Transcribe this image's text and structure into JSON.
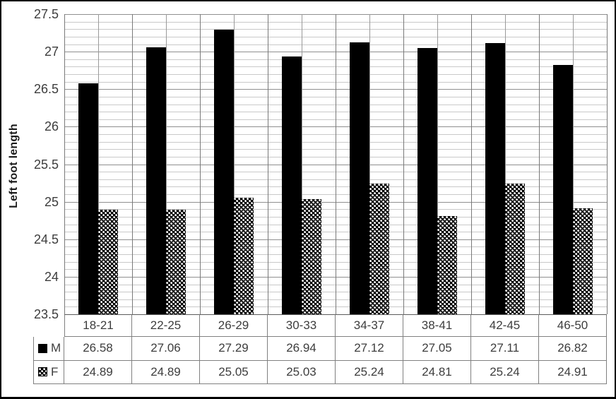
{
  "figure": {
    "background": "#ffffff",
    "border_color": "#000000"
  },
  "chart_data": {
    "type": "bar",
    "title": "",
    "xlabel": "",
    "ylabel": "Left foot length",
    "categories": [
      "18-21",
      "22-25",
      "26-29",
      "30-33",
      "34-37",
      "38-41",
      "42-45",
      "46-50"
    ],
    "series": [
      {
        "name": "M",
        "fill": "solid",
        "color": "#000000",
        "values": [
          26.58,
          27.06,
          27.29,
          26.94,
          27.12,
          27.05,
          27.11,
          26.82
        ]
      },
      {
        "name": "F",
        "fill": "checker",
        "color": "#000000",
        "pattern_dot_color": "#ffffff",
        "values": [
          24.89,
          24.89,
          25.05,
          25.03,
          25.24,
          24.81,
          25.24,
          24.91
        ]
      }
    ],
    "ylim": [
      23.5,
      27.5
    ],
    "y_tick_values": [
      27.5,
      27,
      26.5,
      26,
      25.5,
      25,
      24.5,
      24,
      23.5
    ],
    "y_major_step": 0.5,
    "y_minor_step": 0.1,
    "grid": {
      "horizontal_major": true,
      "horizontal_minor": true,
      "vertical_category": true,
      "vertical_half_category": true
    },
    "legend_position": "table-left-column",
    "data_table_shown": true,
    "colors": {
      "grid_major": "#8f8f8f",
      "grid_minor": "#c9c9c9",
      "axis_text": "#3d3d3d",
      "table_border": "#808080"
    }
  }
}
